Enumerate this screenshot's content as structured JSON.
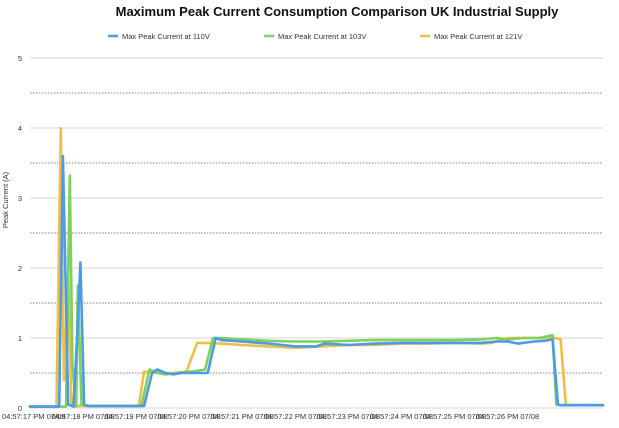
{
  "chart_data": {
    "type": "line",
    "title": "Maximum Peak Current Consumption Comparison UK Industrial Supply",
    "ylabel": "Peak Current (A)",
    "xlabel": "",
    "ylim": [
      0,
      5
    ],
    "y_ticks": [
      "0",
      "1",
      "2",
      "3",
      "4",
      "5"
    ],
    "x_ticks": [
      "04:57:17 PM 07/08",
      "04:57:18 PM 07/08",
      "04:57:19 PM 07/08",
      "04:57:20 PM 07/08",
      "04:57:21 PM 07/08",
      "04:57:22 PM 07/08",
      "04:57:23 PM 07/08",
      "04:57:24 PM 07/08",
      "04:57:25 PM 07/08",
      "04:57:26 PM 07/08"
    ],
    "x_range": [
      0,
      10.8
    ],
    "grid": true,
    "legend_position": "top",
    "series": [
      {
        "name": "Max Peak Current at 110V",
        "color": "#4a9be8",
        "points": [
          [
            0,
            0.02
          ],
          [
            0.55,
            0.02
          ],
          [
            0.62,
            3.6
          ],
          [
            0.72,
            0.05
          ],
          [
            0.82,
            0.02
          ],
          [
            0.9,
            1.2
          ],
          [
            0.95,
            2.08
          ],
          [
            1.02,
            0.05
          ],
          [
            1.1,
            0.03
          ],
          [
            2.15,
            0.03
          ],
          [
            2.3,
            0.5
          ],
          [
            2.4,
            0.55
          ],
          [
            2.55,
            0.5
          ],
          [
            2.7,
            0.48
          ],
          [
            2.85,
            0.5
          ],
          [
            3.0,
            0.5
          ],
          [
            3.35,
            0.5
          ],
          [
            3.5,
            1.0
          ],
          [
            3.6,
            0.97
          ],
          [
            4.0,
            0.95
          ],
          [
            4.5,
            0.92
          ],
          [
            5.0,
            0.88
          ],
          [
            5.4,
            0.88
          ],
          [
            5.55,
            0.92
          ],
          [
            6.0,
            0.9
          ],
          [
            6.5,
            0.92
          ],
          [
            7.0,
            0.93
          ],
          [
            7.5,
            0.93
          ],
          [
            8.0,
            0.93
          ],
          [
            8.5,
            0.93
          ],
          [
            8.8,
            0.95
          ],
          [
            9.0,
            0.95
          ],
          [
            9.2,
            0.92
          ],
          [
            9.5,
            0.95
          ],
          [
            9.7,
            0.96
          ],
          [
            9.85,
            0.98
          ],
          [
            9.95,
            0.05
          ],
          [
            10.0,
            0.04
          ],
          [
            10.8,
            0.04
          ]
        ]
      },
      {
        "name": "Max Peak Current at 103V",
        "color": "#7ed15a",
        "points": [
          [
            0,
            0.02
          ],
          [
            0.68,
            0.02
          ],
          [
            0.75,
            3.32
          ],
          [
            0.8,
            0.6
          ],
          [
            0.87,
            0.02
          ],
          [
            0.9,
            1.75
          ],
          [
            0.97,
            0.05
          ],
          [
            1.05,
            0.03
          ],
          [
            2.1,
            0.03
          ],
          [
            2.25,
            0.55
          ],
          [
            2.4,
            0.5
          ],
          [
            2.55,
            0.48
          ],
          [
            2.75,
            0.5
          ],
          [
            3.05,
            0.52
          ],
          [
            3.3,
            0.55
          ],
          [
            3.45,
            1.0
          ],
          [
            3.6,
            1.0
          ],
          [
            4.0,
            0.98
          ],
          [
            4.5,
            0.96
          ],
          [
            5.0,
            0.95
          ],
          [
            5.5,
            0.95
          ],
          [
            6.0,
            0.96
          ],
          [
            6.5,
            0.97
          ],
          [
            7.0,
            0.97
          ],
          [
            7.5,
            0.97
          ],
          [
            8.0,
            0.97
          ],
          [
            8.5,
            0.98
          ],
          [
            8.8,
            1.0
          ],
          [
            9.0,
            0.98
          ],
          [
            9.3,
            1.0
          ],
          [
            9.6,
            1.0
          ],
          [
            9.85,
            1.04
          ],
          [
            9.92,
            0.05
          ],
          [
            10.0,
            0.04
          ],
          [
            10.8,
            0.04
          ]
        ]
      },
      {
        "name": "Max Peak Current at 121V",
        "color": "#f2bd42",
        "points": [
          [
            0,
            0.02
          ],
          [
            0.5,
            0.02
          ],
          [
            0.58,
            4.0
          ],
          [
            0.64,
            0.4
          ],
          [
            0.72,
            1.9
          ],
          [
            0.78,
            0.05
          ],
          [
            0.86,
            0.03
          ],
          [
            1.0,
            0.03
          ],
          [
            2.05,
            0.03
          ],
          [
            2.15,
            0.52
          ],
          [
            2.3,
            0.5
          ],
          [
            2.5,
            0.5
          ],
          [
            2.7,
            0.5
          ],
          [
            2.95,
            0.52
          ],
          [
            3.15,
            0.93
          ],
          [
            3.35,
            0.93
          ],
          [
            3.6,
            0.92
          ],
          [
            4.0,
            0.9
          ],
          [
            4.5,
            0.88
          ],
          [
            5.0,
            0.86
          ],
          [
            5.5,
            0.88
          ],
          [
            6.0,
            0.9
          ],
          [
            6.5,
            0.9
          ],
          [
            7.0,
            0.92
          ],
          [
            7.5,
            0.92
          ],
          [
            8.0,
            0.93
          ],
          [
            8.5,
            0.92
          ],
          [
            8.7,
            0.93
          ],
          [
            9.0,
            1.0
          ],
          [
            9.5,
            1.0
          ],
          [
            9.9,
            1.0
          ],
          [
            10.0,
            0.98
          ],
          [
            10.1,
            0.04
          ],
          [
            10.8,
            0.04
          ]
        ]
      }
    ]
  }
}
